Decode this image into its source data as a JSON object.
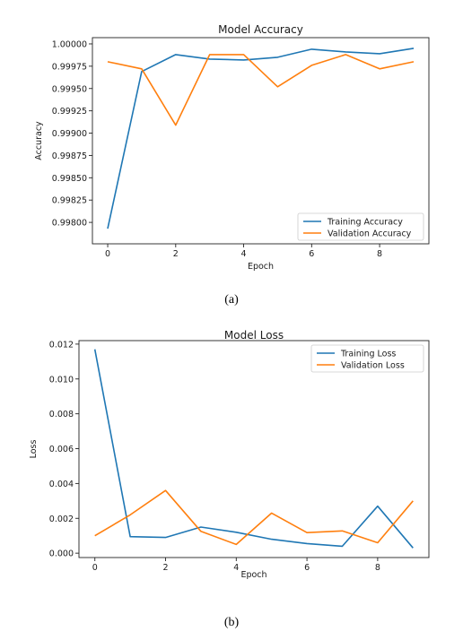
{
  "chart_data": [
    {
      "type": "line",
      "title": "Model Accuracy",
      "xlabel": "Epoch",
      "ylabel": "Accuracy",
      "x": [
        0,
        1,
        2,
        3,
        4,
        5,
        6,
        7,
        8,
        9
      ],
      "xticks": [
        "0",
        "2",
        "4",
        "6",
        "8"
      ],
      "xtick_values": [
        0,
        2,
        4,
        6,
        8
      ],
      "yticks": [
        "0.99800",
        "0.99825",
        "0.99850",
        "0.99875",
        "0.99900",
        "0.99925",
        "0.99950",
        "0.99975",
        "1.00000"
      ],
      "ytick_values": [
        0.998,
        0.99825,
        0.9985,
        0.99875,
        0.999,
        0.99925,
        0.9995,
        0.99975,
        1.0
      ],
      "xlim": [
        -0.45,
        9.45
      ],
      "ylim": [
        0.99776,
        1.00007
      ],
      "legend_position": "lower-right",
      "grid": false,
      "series": [
        {
          "name": "Training Accuracy",
          "color": "#1f77b4",
          "values": [
            0.99793,
            0.99969,
            0.99988,
            0.99983,
            0.99982,
            0.99985,
            0.99994,
            0.99991,
            0.99989,
            0.99995
          ]
        },
        {
          "name": "Validation Accuracy",
          "color": "#ff7f0e",
          "values": [
            0.9998,
            0.99972,
            0.99909,
            0.99988,
            0.99988,
            0.99952,
            0.99976,
            0.99988,
            0.99972,
            0.9998
          ]
        }
      ]
    },
    {
      "type": "line",
      "title": "Model Loss",
      "xlabel": "Epoch",
      "ylabel": "Loss",
      "x": [
        0,
        1,
        2,
        3,
        4,
        5,
        6,
        7,
        8,
        9
      ],
      "xticks": [
        "0",
        "2",
        "4",
        "6",
        "8"
      ],
      "xtick_values": [
        0,
        2,
        4,
        6,
        8
      ],
      "yticks": [
        "0.000",
        "0.002",
        "0.004",
        "0.006",
        "0.008",
        "0.010",
        "0.012"
      ],
      "ytick_values": [
        0.0,
        0.002,
        0.004,
        0.006,
        0.008,
        0.01,
        0.012
      ],
      "xlim": [
        -0.45,
        9.45
      ],
      "ylim": [
        -0.00025,
        0.0122
      ],
      "legend_position": "upper-right",
      "grid": false,
      "series": [
        {
          "name": "Training Loss",
          "color": "#1f77b4",
          "values": [
            0.0117,
            0.00095,
            0.0009,
            0.0015,
            0.0012,
            0.0008,
            0.00055,
            0.0004,
            0.0027,
            0.0003
          ]
        },
        {
          "name": "Validation Loss",
          "color": "#ff7f0e",
          "values": [
            0.001,
            0.0022,
            0.0036,
            0.00125,
            0.0005,
            0.0023,
            0.00118,
            0.00128,
            0.0006,
            0.003
          ]
        }
      ]
    }
  ],
  "captions": {
    "a": "(a)",
    "b": "(b)"
  }
}
